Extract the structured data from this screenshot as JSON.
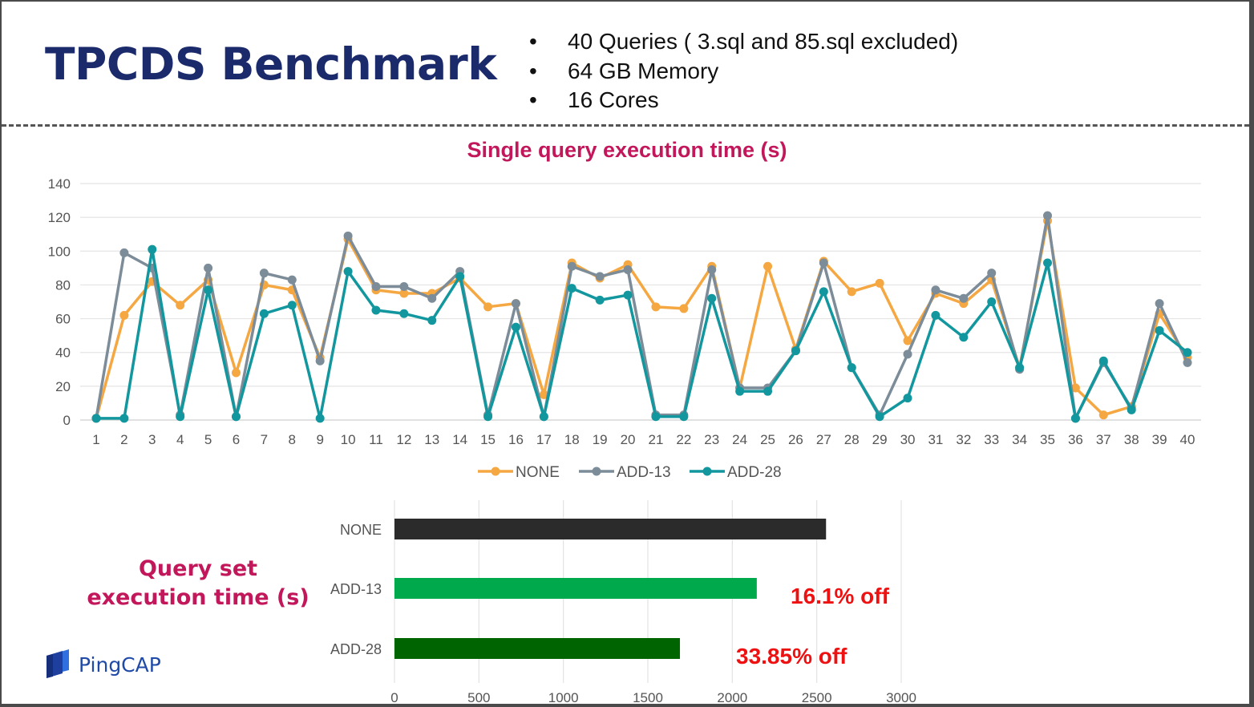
{
  "slide": {
    "title": "TPCDS Benchmark",
    "bullets": [
      "40 Queries ( 3.sql and 85.sql excluded)",
      "64 GB Memory",
      "16 Cores"
    ],
    "bullet_glyph": "•"
  },
  "logo": {
    "text": "PingCAP",
    "icon": "pingcap-logo-icon"
  },
  "colors": {
    "title": "#1b2a6b",
    "chart_title": "#c2185b",
    "annotation": "#ee1111",
    "NONE": "#f5a742",
    "ADD-13": "#7c8c98",
    "ADD-28": "#13979f",
    "bar_NONE": "#2b2b2b",
    "bar_ADD-13": "#00aa4c",
    "bar_ADD-28": "#006400"
  },
  "chart_data": [
    {
      "type": "line",
      "title": "Single query execution time (s)",
      "xlabel": "",
      "ylabel": "",
      "ylim": [
        0,
        140
      ],
      "yticks": [
        0,
        20,
        40,
        60,
        80,
        100,
        120,
        140
      ],
      "grid": true,
      "legend": "bottom",
      "categories": [
        "1",
        "2",
        "3",
        "4",
        "5",
        "6",
        "7",
        "8",
        "9",
        "10",
        "11",
        "12",
        "13",
        "14",
        "15",
        "16",
        "17",
        "18",
        "19",
        "20",
        "21",
        "22",
        "23",
        "24",
        "25",
        "26",
        "27",
        "28",
        "29",
        "30",
        "31",
        "32",
        "33",
        "34",
        "35",
        "36",
        "37",
        "38",
        "39",
        "40"
      ],
      "series": [
        {
          "name": "NONE",
          "values": [
            1,
            62,
            82,
            68,
            83,
            28,
            80,
            77,
            37,
            107,
            77,
            75,
            75,
            84,
            67,
            69,
            15,
            93,
            84,
            92,
            67,
            66,
            91,
            19,
            91,
            42,
            94,
            76,
            81,
            47,
            75,
            69,
            83,
            31,
            118,
            19,
            3,
            8,
            63,
            37
          ]
        },
        {
          "name": "ADD-13",
          "values": [
            1,
            99,
            90,
            3,
            90,
            2,
            87,
            83,
            35,
            109,
            79,
            79,
            72,
            88,
            3,
            69,
            2,
            91,
            85,
            89,
            3,
            3,
            89,
            19,
            19,
            41,
            93,
            31,
            3,
            39,
            77,
            72,
            87,
            30,
            121,
            1,
            34,
            7,
            69,
            34
          ]
        },
        {
          "name": "ADD-28",
          "values": [
            1,
            1,
            101,
            2,
            77,
            2,
            63,
            68,
            1,
            88,
            65,
            63,
            59,
            85,
            2,
            55,
            2,
            78,
            71,
            74,
            2,
            2,
            72,
            17,
            17,
            41,
            76,
            31,
            2,
            13,
            62,
            49,
            70,
            31,
            93,
            1,
            35,
            6,
            53,
            40
          ]
        }
      ]
    },
    {
      "type": "bar",
      "orientation": "horizontal",
      "title": "Query set\nexecution time (s)",
      "xlim": [
        0,
        3000
      ],
      "xticks": [
        0,
        500,
        1000,
        1500,
        2000,
        2500,
        3000
      ],
      "grid": true,
      "categories": [
        "NONE",
        "ADD-13",
        "ADD-28"
      ],
      "values": [
        2555,
        2145,
        1690
      ],
      "annotations": [
        "",
        "16.1% off",
        "33.85% off"
      ]
    }
  ]
}
